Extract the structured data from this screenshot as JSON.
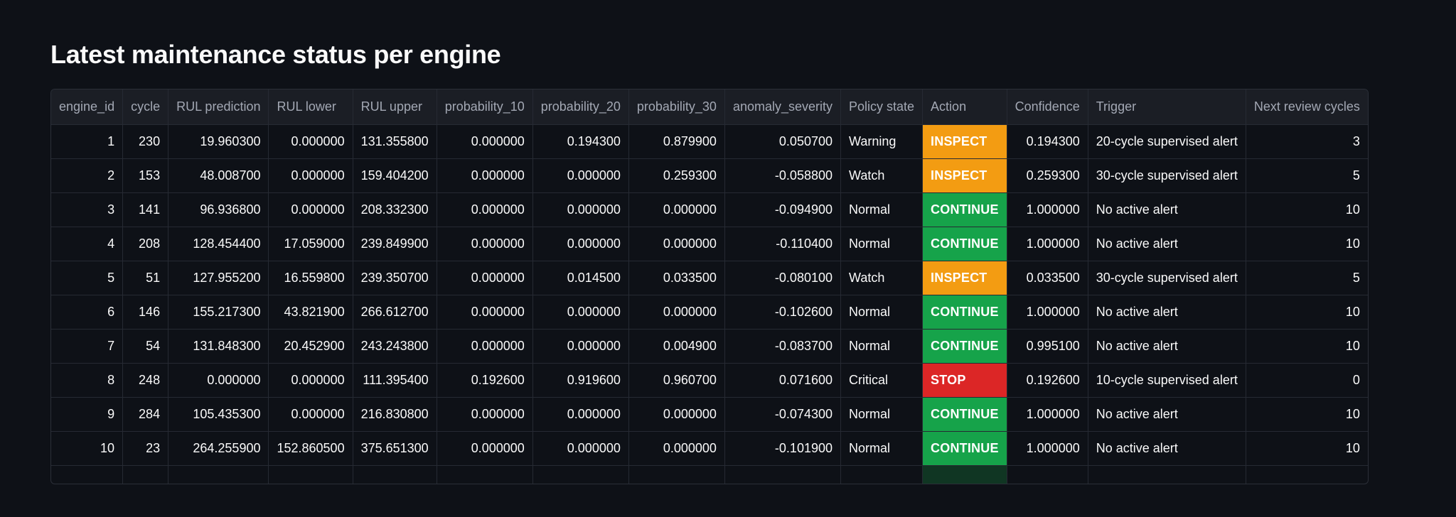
{
  "page": {
    "title": "Latest maintenance status per engine"
  },
  "colors": {
    "background": "#0e1117",
    "header_bg": "#1b1e25",
    "inspect": "#f39c12",
    "continue": "#16a34a",
    "stop": "#dc2626"
  },
  "table": {
    "columns": [
      {
        "key": "engine_id",
        "label": "engine_id",
        "align": "num"
      },
      {
        "key": "cycle",
        "label": "cycle",
        "align": "num"
      },
      {
        "key": "rul_prediction",
        "label": "RUL prediction",
        "align": "num"
      },
      {
        "key": "rul_lower",
        "label": "RUL lower",
        "align": "num"
      },
      {
        "key": "rul_upper",
        "label": "RUL upper",
        "align": "num"
      },
      {
        "key": "probability_10",
        "label": "probability_10",
        "align": "num"
      },
      {
        "key": "probability_20",
        "label": "probability_20",
        "align": "num"
      },
      {
        "key": "probability_30",
        "label": "probability_30",
        "align": "num"
      },
      {
        "key": "anomaly_severity",
        "label": "anomaly_severity",
        "align": "num"
      },
      {
        "key": "policy_state",
        "label": "Policy state",
        "align": "txt"
      },
      {
        "key": "action",
        "label": "Action",
        "align": "action"
      },
      {
        "key": "confidence",
        "label": "Confidence",
        "align": "num"
      },
      {
        "key": "trigger",
        "label": "Trigger",
        "align": "txt"
      },
      {
        "key": "next_review",
        "label": "Next review cycles",
        "align": "num"
      }
    ],
    "rows": [
      [
        "1",
        "230",
        "19.960300",
        "0.000000",
        "131.355800",
        "0.000000",
        "0.194300",
        "0.879900",
        "0.050700",
        "Warning",
        "INSPECT",
        "0.194300",
        "20-cycle supervised alert",
        "3"
      ],
      [
        "2",
        "153",
        "48.008700",
        "0.000000",
        "159.404200",
        "0.000000",
        "0.000000",
        "0.259300",
        "-0.058800",
        "Watch",
        "INSPECT",
        "0.259300",
        "30-cycle supervised alert",
        "5"
      ],
      [
        "3",
        "141",
        "96.936800",
        "0.000000",
        "208.332300",
        "0.000000",
        "0.000000",
        "0.000000",
        "-0.094900",
        "Normal",
        "CONTINUE",
        "1.000000",
        "No active alert",
        "10"
      ],
      [
        "4",
        "208",
        "128.454400",
        "17.059000",
        "239.849900",
        "0.000000",
        "0.000000",
        "0.000000",
        "-0.110400",
        "Normal",
        "CONTINUE",
        "1.000000",
        "No active alert",
        "10"
      ],
      [
        "5",
        "51",
        "127.955200",
        "16.559800",
        "239.350700",
        "0.000000",
        "0.014500",
        "0.033500",
        "-0.080100",
        "Watch",
        "INSPECT",
        "0.033500",
        "30-cycle supervised alert",
        "5"
      ],
      [
        "6",
        "146",
        "155.217300",
        "43.821900",
        "266.612700",
        "0.000000",
        "0.000000",
        "0.000000",
        "-0.102600",
        "Normal",
        "CONTINUE",
        "1.000000",
        "No active alert",
        "10"
      ],
      [
        "7",
        "54",
        "131.848300",
        "20.452900",
        "243.243800",
        "0.000000",
        "0.000000",
        "0.004900",
        "-0.083700",
        "Normal",
        "CONTINUE",
        "0.995100",
        "No active alert",
        "10"
      ],
      [
        "8",
        "248",
        "0.000000",
        "0.000000",
        "111.395400",
        "0.192600",
        "0.919600",
        "0.960700",
        "0.071600",
        "Critical",
        "STOP",
        "0.192600",
        "10-cycle supervised alert",
        "0"
      ],
      [
        "9",
        "284",
        "105.435300",
        "0.000000",
        "216.830800",
        "0.000000",
        "0.000000",
        "0.000000",
        "-0.074300",
        "Normal",
        "CONTINUE",
        "1.000000",
        "No active alert",
        "10"
      ],
      [
        "10",
        "23",
        "264.255900",
        "152.860500",
        "375.651300",
        "0.000000",
        "0.000000",
        "0.000000",
        "-0.101900",
        "Normal",
        "CONTINUE",
        "1.000000",
        "No active alert",
        "10"
      ]
    ],
    "partial_row": [
      "",
      "",
      "",
      "",
      "",
      "",
      "",
      "",
      "",
      "",
      "",
      "",
      "",
      ""
    ]
  }
}
